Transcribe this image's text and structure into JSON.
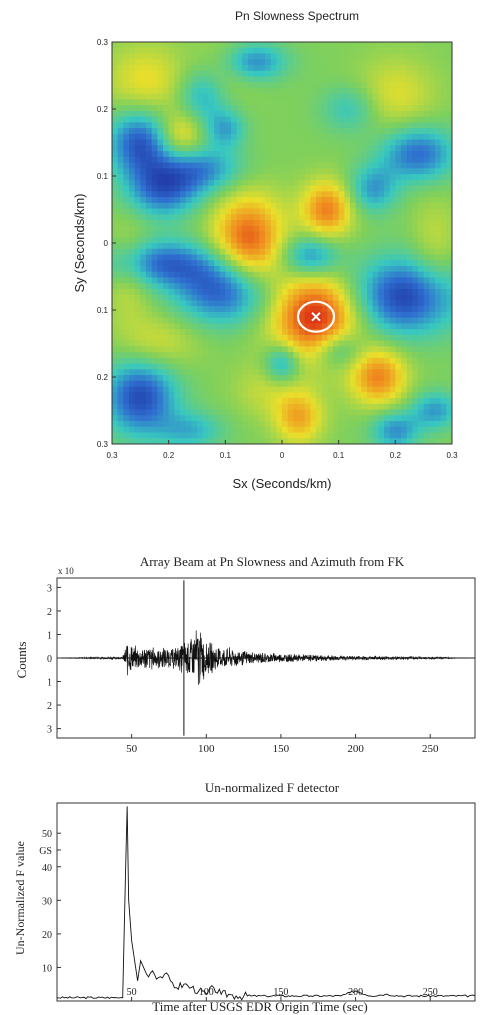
{
  "chart_data": [
    {
      "type": "heatmap",
      "title": "Pn Slowness Spectrum",
      "xlabel": "Sx (Seconds/km)",
      "ylabel": "Sy (Seconds/km)",
      "xlim": [
        -0.3,
        0.3
      ],
      "ylim": [
        -0.3,
        0.3
      ],
      "x_ticks": [
        "0.3",
        "0.2",
        "0.1",
        "0",
        "0.1",
        "0.2",
        "0.3"
      ],
      "y_ticks": [
        "0.3",
        "0.2",
        "0.1",
        "0",
        "0.1",
        "0.2",
        "0.3"
      ],
      "colormap": [
        "#1e2e9e",
        "#2f6fd0",
        "#38c8c0",
        "#7fd05c",
        "#eadf2a",
        "#f08a1f",
        "#d81e12"
      ],
      "peak": {
        "sx": 0.06,
        "sy": -0.11,
        "marker": "x"
      },
      "blobs": [
        {
          "sx": 0.06,
          "sy": -0.11,
          "v": 1.0,
          "rx": 0.055,
          "ry": 0.045
        },
        {
          "sx": -0.06,
          "sy": 0.0,
          "v": 0.85,
          "rx": 0.045,
          "ry": 0.05
        },
        {
          "sx": 0.08,
          "sy": 0.05,
          "v": 0.7,
          "rx": 0.032,
          "ry": 0.03
        },
        {
          "sx": 0.17,
          "sy": -0.2,
          "v": 0.68,
          "rx": 0.035,
          "ry": 0.03
        },
        {
          "sx": 0.03,
          "sy": -0.26,
          "v": 0.55,
          "rx": 0.03,
          "ry": 0.028
        },
        {
          "sx": -0.18,
          "sy": 0.16,
          "v": 0.45,
          "rx": 0.03,
          "ry": 0.025
        },
        {
          "sx": -0.24,
          "sy": 0.24,
          "v": 0.35,
          "rx": 0.05,
          "ry": 0.04
        },
        {
          "sx": 0.2,
          "sy": 0.22,
          "v": 0.3,
          "rx": 0.05,
          "ry": 0.04
        },
        {
          "sx": -0.27,
          "sy": -0.04,
          "v": 0.3,
          "rx": 0.03,
          "ry": 0.05
        },
        {
          "sx": 0.27,
          "sy": -0.02,
          "v": 0.25,
          "rx": 0.03,
          "ry": 0.06
        },
        {
          "sx": -0.22,
          "sy": -0.15,
          "v": 0.28,
          "rx": 0.05,
          "ry": 0.03
        },
        {
          "sx": 0.24,
          "sy": 0.12,
          "v": 0.22,
          "rx": 0.04,
          "ry": 0.03
        },
        {
          "sx": -0.03,
          "sy": -0.22,
          "v": 0.2,
          "rx": 0.04,
          "ry": 0.03
        },
        {
          "sx": -0.1,
          "sy": 0.26,
          "v": 0.2,
          "rx": 0.04,
          "ry": 0.03
        },
        {
          "sx": -0.1,
          "sy": -0.07,
          "v": -0.85,
          "rx": 0.06,
          "ry": 0.035
        },
        {
          "sx": -0.22,
          "sy": -0.03,
          "v": -0.7,
          "rx": 0.07,
          "ry": 0.025
        },
        {
          "sx": 0.22,
          "sy": -0.08,
          "v": -0.9,
          "rx": 0.07,
          "ry": 0.04
        },
        {
          "sx": -0.25,
          "sy": -0.23,
          "v": -0.85,
          "rx": 0.045,
          "ry": 0.04
        },
        {
          "sx": -0.21,
          "sy": 0.08,
          "v": -0.7,
          "rx": 0.045,
          "ry": 0.03
        },
        {
          "sx": -0.25,
          "sy": 0.15,
          "v": -0.8,
          "rx": 0.04,
          "ry": 0.035
        },
        {
          "sx": 0.24,
          "sy": 0.13,
          "v": -0.9,
          "rx": 0.045,
          "ry": 0.03
        },
        {
          "sx": -0.14,
          "sy": 0.11,
          "v": -0.55,
          "rx": 0.05,
          "ry": 0.025
        },
        {
          "sx": 0.05,
          "sy": -0.02,
          "v": -0.6,
          "rx": 0.035,
          "ry": 0.022
        },
        {
          "sx": 0.0,
          "sy": -0.18,
          "v": -0.55,
          "rx": 0.022,
          "ry": 0.02
        },
        {
          "sx": 0.2,
          "sy": -0.28,
          "v": -0.55,
          "rx": 0.03,
          "ry": 0.02
        },
        {
          "sx": -0.05,
          "sy": 0.27,
          "v": -0.6,
          "rx": 0.04,
          "ry": 0.02
        },
        {
          "sx": -0.14,
          "sy": 0.22,
          "v": -0.45,
          "rx": 0.03,
          "ry": 0.03
        },
        {
          "sx": 0.16,
          "sy": 0.08,
          "v": -0.5,
          "rx": 0.03,
          "ry": 0.025
        },
        {
          "sx": 0.1,
          "sy": -0.16,
          "v": -0.45,
          "rx": 0.03,
          "ry": 0.02
        },
        {
          "sx": -0.1,
          "sy": 0.17,
          "v": -0.45,
          "rx": 0.025,
          "ry": 0.02
        },
        {
          "sx": 0.12,
          "sy": 0.2,
          "v": -0.35,
          "rx": 0.035,
          "ry": 0.025
        },
        {
          "sx": 0.27,
          "sy": -0.25,
          "v": -0.5,
          "rx": 0.03,
          "ry": 0.02
        },
        {
          "sx": -0.16,
          "sy": -0.28,
          "v": -0.4,
          "rx": 0.04,
          "ry": 0.02
        }
      ]
    },
    {
      "type": "line",
      "title": "Array Beam at Pn Slowness and Azimuth from FK",
      "xlabel": "",
      "ylabel": "Counts",
      "y_exponent": "x 10",
      "xlim": [
        0,
        280
      ],
      "ylim": [
        -3.4,
        3.4
      ],
      "x_ticks": [
        50,
        100,
        150,
        200,
        250
      ],
      "y_ticks": [
        "3",
        "2",
        "1",
        "0",
        "1",
        "2",
        "3"
      ],
      "envelope": [
        {
          "x": 0,
          "amp": 0.0
        },
        {
          "x": 30,
          "amp": 0.05
        },
        {
          "x": 44,
          "amp": 0.05
        },
        {
          "x": 47,
          "amp": 0.9
        },
        {
          "x": 52,
          "amp": 0.55
        },
        {
          "x": 60,
          "amp": 0.6
        },
        {
          "x": 70,
          "amp": 0.5
        },
        {
          "x": 80,
          "amp": 0.5
        },
        {
          "x": 86,
          "amp": 0.85
        },
        {
          "x": 90,
          "amp": 1.1
        },
        {
          "x": 94,
          "amp": 1.6
        },
        {
          "x": 100,
          "amp": 0.8
        },
        {
          "x": 110,
          "amp": 0.55
        },
        {
          "x": 130,
          "amp": 0.3
        },
        {
          "x": 160,
          "amp": 0.18
        },
        {
          "x": 200,
          "amp": 0.1
        },
        {
          "x": 240,
          "amp": 0.06
        },
        {
          "x": 260,
          "amp": 0.04
        },
        {
          "x": 270,
          "amp": 0.0
        }
      ],
      "spike": {
        "x": 85,
        "ymin": -3.3,
        "ymax": 3.3
      }
    },
    {
      "type": "line",
      "title": "Un-normalized F detector",
      "xlabel": "Time after USGS EDR Origin Time (sec)",
      "ylabel": "Un-Normalized F value",
      "xlim": [
        0,
        280
      ],
      "ylim": [
        0,
        59
      ],
      "x_ticks": [
        50,
        100,
        150,
        200,
        250
      ],
      "y_ticks": [
        10,
        20,
        30,
        40,
        45,
        50
      ],
      "y_tick_labels": [
        "10",
        "20",
        "30",
        "40",
        "GS",
        "50"
      ],
      "x": [
        0,
        40,
        44,
        46,
        47,
        48,
        50,
        52,
        54,
        56,
        58,
        60,
        64,
        68,
        72,
        76,
        80,
        85,
        90,
        95,
        100,
        105,
        110,
        115,
        120,
        130,
        140,
        150,
        160,
        170,
        180,
        190,
        200,
        210,
        220,
        230,
        240,
        260,
        280
      ],
      "y": [
        1,
        1,
        1,
        40,
        58,
        30,
        18,
        12,
        6,
        12,
        10,
        8,
        9,
        7,
        8,
        6,
        4,
        5,
        4,
        3,
        2,
        4,
        2,
        2,
        1.5,
        1.5,
        1.5,
        1.5,
        1.5,
        1.5,
        1.5,
        1.5,
        3,
        1.5,
        2,
        1.5,
        1.5,
        1.5,
        1.5
      ]
    }
  ]
}
